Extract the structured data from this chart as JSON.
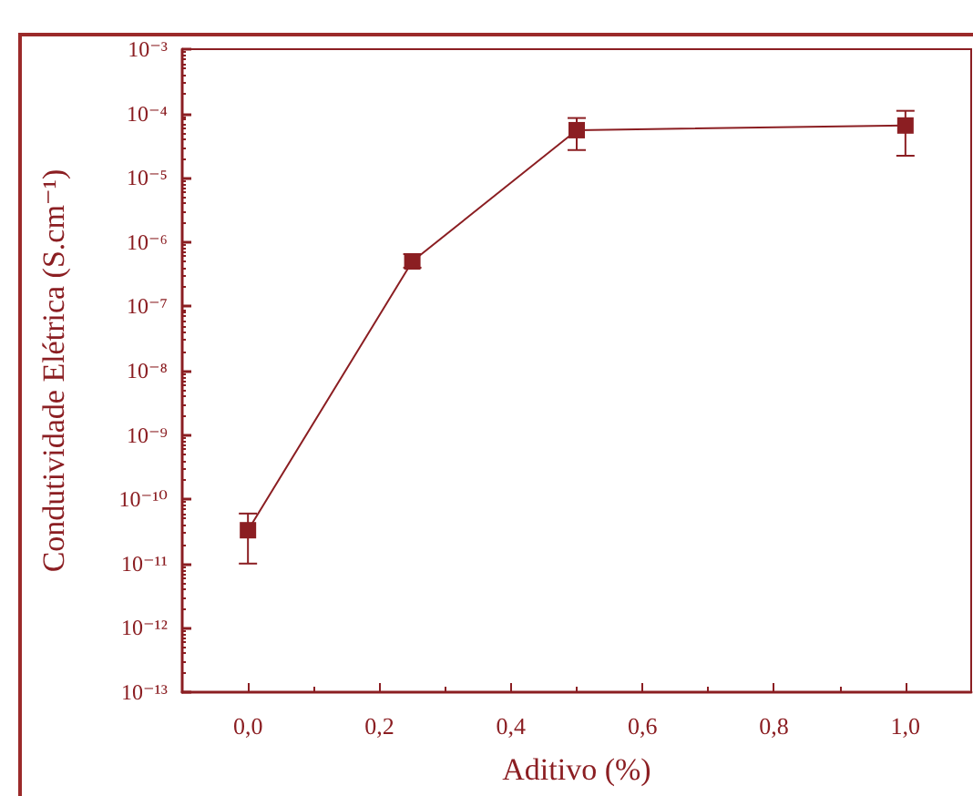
{
  "chart_data": {
    "type": "line",
    "xlabel": "Aditivo (%)",
    "ylabel": "Condutividade Elétrica (S.cm⁻¹)",
    "x": [
      0,
      0.25,
      0.5,
      1.0
    ],
    "series": [
      {
        "color": "#8b1e22",
        "values": [
          3.3e-11,
          5e-07,
          5.5e-05,
          6.5e-05
        ],
        "errors": [
          [
            1e-11,
            6e-11
          ],
          [
            4e-07,
            6.5e-07
          ],
          [
            2.7e-05,
            8.5e-05
          ],
          [
            2.2e-05,
            0.00011
          ]
        ]
      }
    ],
    "xlim": [
      -0.1,
      1.1
    ],
    "xticks": [
      {
        "value": 0,
        "label": "0,0"
      },
      {
        "value": 0.2,
        "label": "0,2"
      },
      {
        "value": 0.4,
        "label": "0,4"
      },
      {
        "value": 0.6,
        "label": "0,6"
      },
      {
        "value": 0.8,
        "label": "0,8"
      },
      {
        "value": 1.0,
        "label": "1,0"
      }
    ],
    "ylim": [
      1e-13,
      0.001
    ],
    "yticks": [
      {
        "value": 1e-13,
        "label": "10⁻¹³"
      },
      {
        "value": 1e-12,
        "label": "10⁻¹²"
      },
      {
        "value": 1e-11,
        "label": "10⁻¹¹"
      },
      {
        "value": 1e-10,
        "label": "10⁻¹⁰"
      },
      {
        "value": 1e-09,
        "label": "10⁻⁹"
      },
      {
        "value": 1e-08,
        "label": "10⁻⁸"
      },
      {
        "value": 1e-07,
        "label": "10⁻⁷"
      },
      {
        "value": 1e-06,
        "label": "10⁻⁶"
      },
      {
        "value": 1e-05,
        "label": "10⁻⁵"
      },
      {
        "value": 0.0001,
        "label": "10⁻⁴"
      },
      {
        "value": 0.001,
        "label": "10⁻³"
      }
    ],
    "log": "y",
    "grid": false,
    "marker": "square",
    "line_style": "solid"
  }
}
